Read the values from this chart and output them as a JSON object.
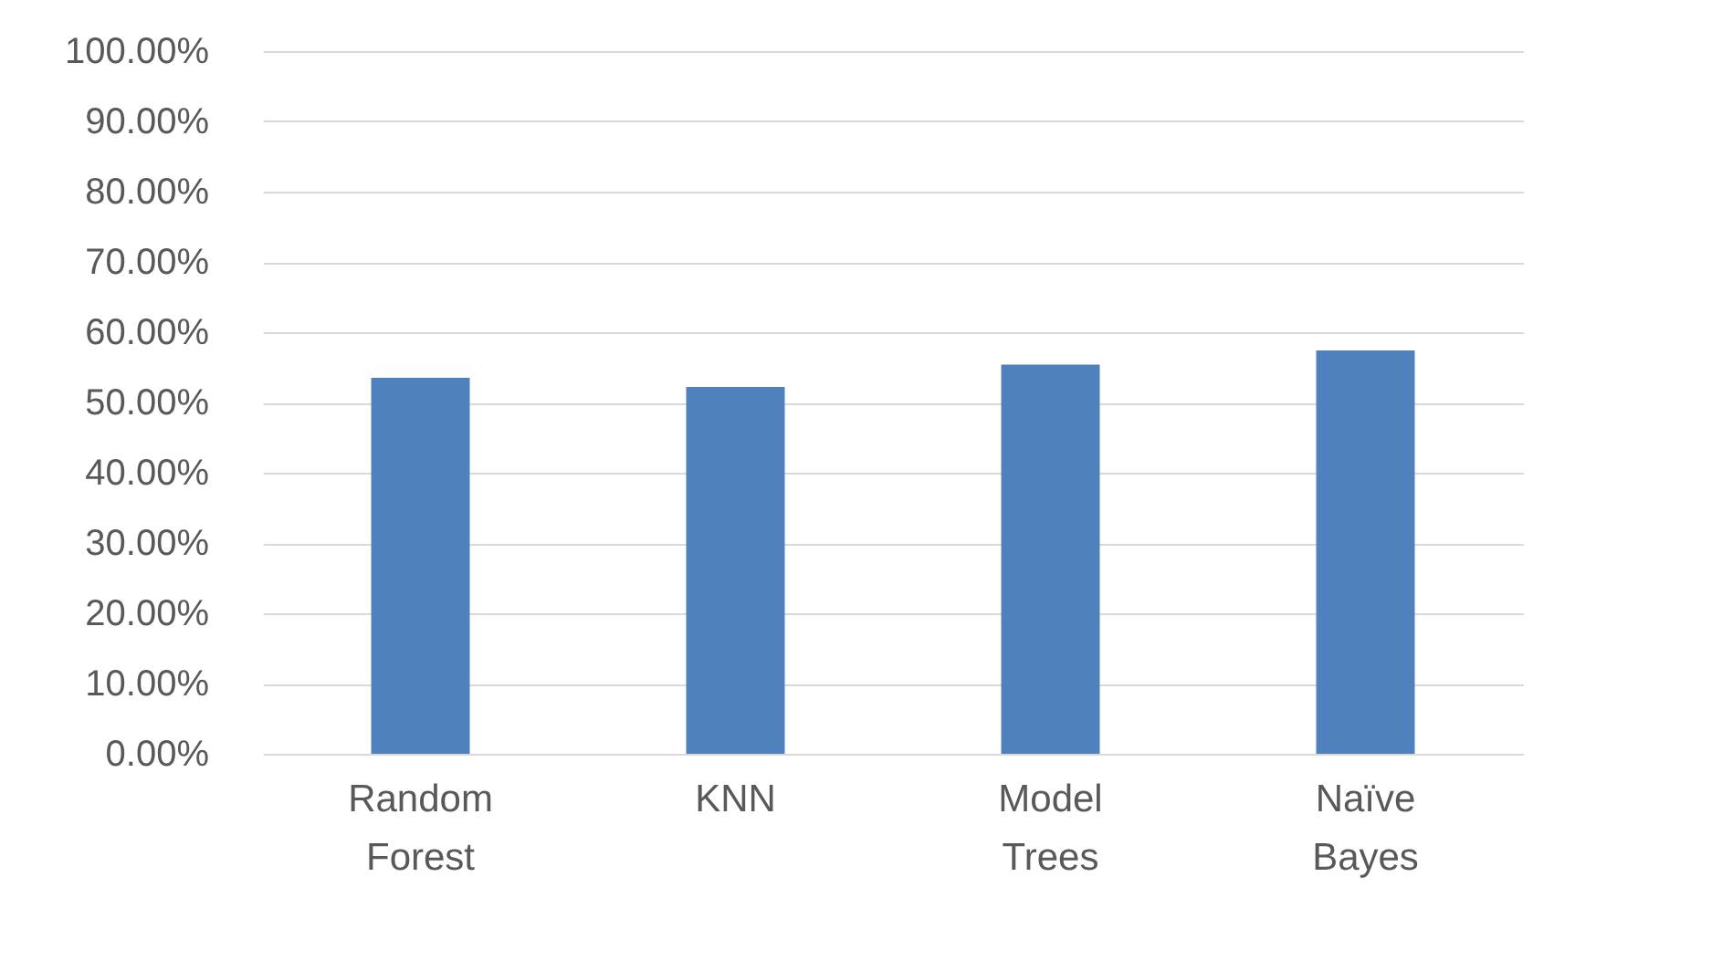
{
  "chart_data": {
    "type": "bar",
    "categories": [
      "Random Forest",
      "KNN",
      "Model Trees",
      "Naïve Bayes"
    ],
    "values": [
      53.5,
      52.2,
      55.4,
      57.4
    ],
    "color": "#4f81bd",
    "ylim": [
      0,
      100
    ],
    "yticks": [
      {
        "value": 0,
        "label": "0.00%"
      },
      {
        "value": 10,
        "label": "10.00%"
      },
      {
        "value": 20,
        "label": "20.00%"
      },
      {
        "value": 30,
        "label": "30.00%"
      },
      {
        "value": 40,
        "label": "40.00%"
      },
      {
        "value": 50,
        "label": "50.00%"
      },
      {
        "value": 60,
        "label": "60.00%"
      },
      {
        "value": 70,
        "label": "70.00%"
      },
      {
        "value": 80,
        "label": "80.00%"
      },
      {
        "value": 90,
        "label": "90.00%"
      },
      {
        "value": 100,
        "label": "100.00%"
      }
    ],
    "grid": "y"
  }
}
